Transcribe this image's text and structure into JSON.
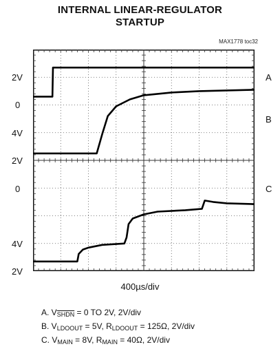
{
  "title_line1": "INTERNAL LINEAR-REGULATOR",
  "title_line2": "STARTUP",
  "toc_ref": "MAX1778 toc32",
  "time_base": "400µs/div",
  "y_labels": {
    "a_top": "2V",
    "a_zero": "0",
    "b_top": "4V",
    "b_mid": "2V",
    "b_zero": "0",
    "c_top": "4V",
    "c_bottom": "2V"
  },
  "channels": {
    "a": "A",
    "b": "B",
    "c": "C"
  },
  "legend": {
    "a_prefix": "A. V",
    "a_sub": "SHDN",
    "a_rest": " = 0 TO 2V, 2V/div",
    "b_prefix": "B. V",
    "b_sub1": "LDOOUT",
    "b_mid": " = 5V, R",
    "b_sub2": "LDOOUT",
    "b_rest": " = 125Ω, 2V/div",
    "c_prefix": "C. V",
    "c_sub1": "MAIN",
    "c_mid": " = 8V, R",
    "c_sub2": "MAIN",
    "c_rest": " = 40Ω, 2V/div"
  },
  "chart_data": {
    "type": "line",
    "title": "INTERNAL LINEAR-REGULATOR STARTUP",
    "xlabel": "400µs/div",
    "grid": true,
    "divisions": {
      "x": 8,
      "y": 8
    },
    "xlim_div": [
      0,
      8
    ],
    "series": [
      {
        "name": "A",
        "scale": "2V/div",
        "points_div": [
          [
            0,
            6.3
          ],
          [
            0.7,
            6.3
          ],
          [
            0.72,
            7.35
          ],
          [
            8,
            7.35
          ]
        ]
      },
      {
        "name": "B",
        "scale": "2V/div",
        "points_div": [
          [
            0,
            4.25
          ],
          [
            2.3,
            4.25
          ],
          [
            2.5,
            4.95
          ],
          [
            2.7,
            5.6
          ],
          [
            3.0,
            5.95
          ],
          [
            3.5,
            6.2
          ],
          [
            4.0,
            6.35
          ],
          [
            5.0,
            6.45
          ],
          [
            6.0,
            6.5
          ],
          [
            8,
            6.55
          ]
        ]
      },
      {
        "name": "C",
        "scale": "2V/div",
        "points_div": [
          [
            0,
            0.35
          ],
          [
            1.6,
            0.35
          ],
          [
            1.65,
            0.62
          ],
          [
            1.8,
            0.78
          ],
          [
            2.0,
            0.85
          ],
          [
            2.5,
            0.95
          ],
          [
            3.3,
            1.0
          ],
          [
            3.38,
            1.22
          ],
          [
            3.45,
            1.7
          ],
          [
            3.6,
            1.9
          ],
          [
            4.0,
            2.05
          ],
          [
            4.5,
            2.15
          ],
          [
            5.5,
            2.2
          ],
          [
            6.1,
            2.25
          ],
          [
            6.2,
            2.55
          ],
          [
            6.5,
            2.5
          ],
          [
            7.0,
            2.45
          ],
          [
            8,
            2.42
          ]
        ]
      }
    ]
  }
}
